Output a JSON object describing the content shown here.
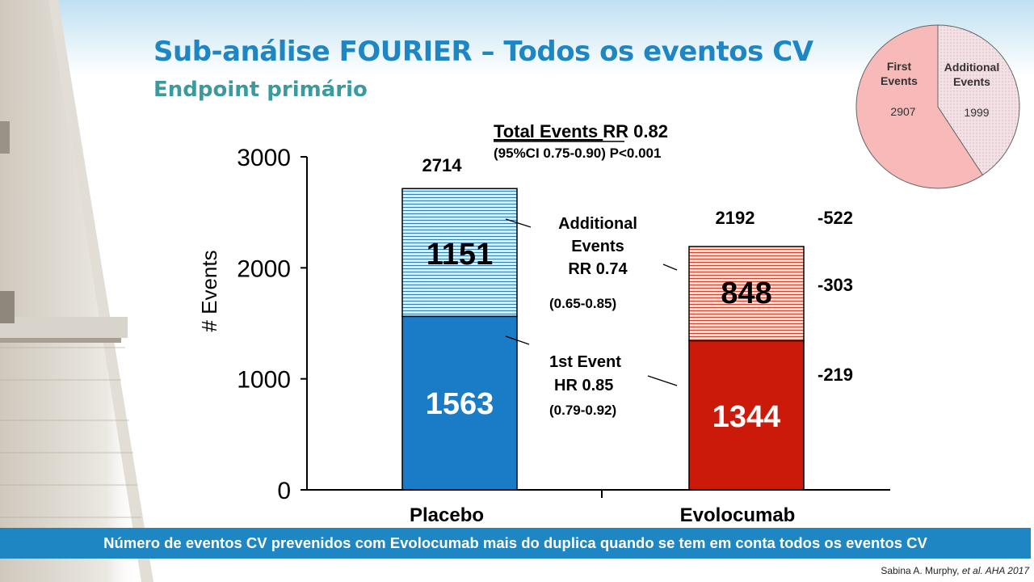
{
  "slide": {
    "title": "Sub-análise FOURIER – Todos os eventos CV",
    "subtitle": "Endpoint primário",
    "banner": "Número de eventos CV prevenidos com Evolocumab mais do duplica quando se tem em conta todos os eventos CV",
    "citation_author": "Sabina A. Murphy,",
    "citation_source": "et al. AHA 2017"
  },
  "colors": {
    "title": "#1f86c4",
    "subtitle": "#3a9a9e",
    "banner": "#1f86c4",
    "placebo_first": "#1a7bc7",
    "placebo_additional": "#d6eef8",
    "placebo_stripe": "#2f7fb0",
    "evolocumab_first": "#cc1a0a",
    "evolocumab_additional": "#fbe0d6",
    "evolocumab_stripe": "#d0402c",
    "pie_first": "#f8b9b9",
    "pie_additional": "#f2e2e6"
  },
  "chart_data": [
    {
      "type": "bar",
      "stacked": true,
      "categories": [
        "Placebo",
        "Evolocumab"
      ],
      "series": [
        {
          "name": "1st Event",
          "values": [
            1563,
            1344
          ]
        },
        {
          "name": "Additional Events",
          "values": [
            1151,
            848
          ]
        }
      ],
      "totals": [
        "2714",
        "2192"
      ],
      "ylabel": "# Events",
      "ylim": [
        0,
        3000
      ],
      "yticks": [
        "0",
        "1000",
        "2000",
        "3000"
      ],
      "header_line1_underlined": "Total Events ",
      "header_line1_rest": "RR 0.82",
      "header_line2": "(95%CI 0.75-0.90) P<0.001",
      "additional_label": [
        "Additional",
        "Events",
        "RR 0.74"
      ],
      "additional_ci": "(0.65-0.85)",
      "first_label": [
        "1st Event",
        "HR 0.85"
      ],
      "first_ci": "(0.79-0.92)",
      "differences": {
        "total": "-522",
        "additional": "-303",
        "first": "-219"
      }
    },
    {
      "type": "pie",
      "labels": [
        "First Events",
        "Additional Events"
      ],
      "label_lines": [
        [
          "First",
          "Events"
        ],
        [
          "Additional",
          "Events"
        ]
      ],
      "values": [
        2907,
        1999
      ]
    }
  ]
}
